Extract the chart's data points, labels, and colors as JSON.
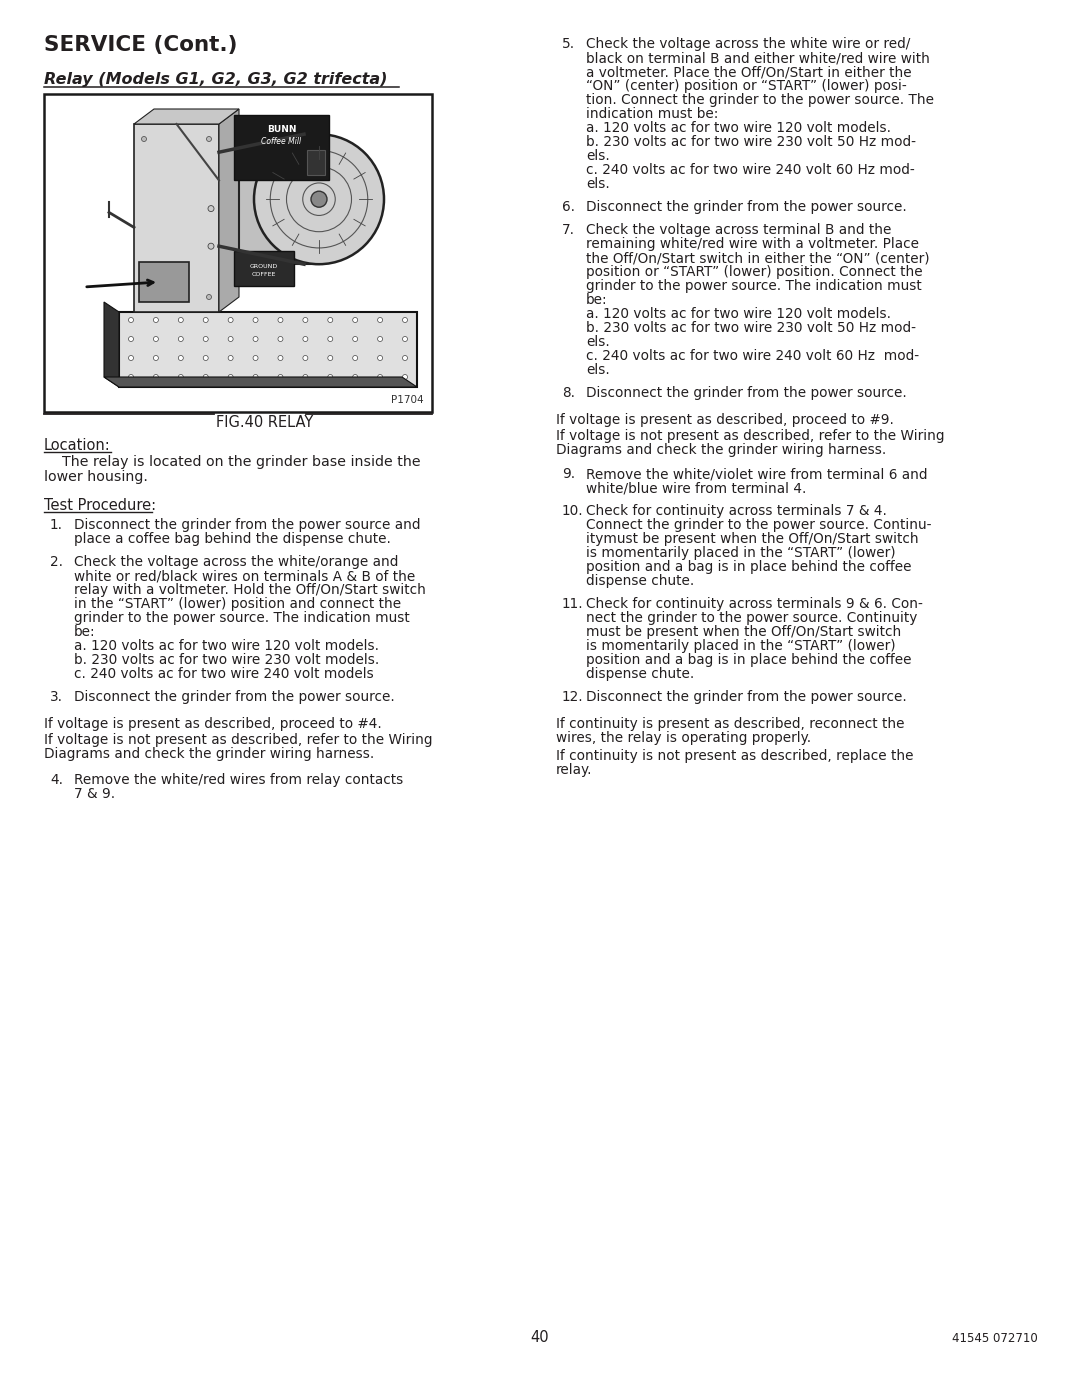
{
  "bg_color": "#ffffff",
  "text_color": "#231f20",
  "header_title": "SERVICE (Cont.)",
  "section_title": "Relay (Models G1, G2, G3, G2 trifecta)",
  "fig_caption": "FIG.40 RELAY",
  "fig_label": "P1704",
  "location_title": "Location:",
  "location_line1": "    The relay is located on the grinder base inside the",
  "location_line2": "lower housing.",
  "test_proc_title": "Test Procedure:",
  "left_col_items": [
    {
      "num": "1.",
      "lines": [
        "Disconnect the grinder from the power source and",
        "place a coffee bag behind the dispense chute."
      ]
    },
    {
      "num": "2.",
      "lines": [
        "Check the voltage across the white/orange and",
        "white or red/black wires on terminals A & B of the",
        "relay with a voltmeter. Hold the Off/On/Start switch",
        "in the “START” (lower) position and connect the",
        "grinder to the power source. The indication must",
        "be:",
        "a. 120 volts ac for two wire 120 volt models.",
        "b. 230 volts ac for two wire 230 volt models.",
        "c. 240 volts ac for two wire 240 volt models"
      ]
    },
    {
      "num": "3.",
      "lines": [
        "Disconnect the grinder from the power source."
      ]
    }
  ],
  "left_if1": "If voltage is present as described, proceed to #4.",
  "left_if2a": "If voltage is not present as described, refer to the Wiring",
  "left_if2b": "Diagrams and check the grinder wiring harness.",
  "left_item4_num": "4.",
  "left_item4_lines": [
    "Remove the white/red wires from relay contacts",
    "7 & 9."
  ],
  "right_col_items": [
    {
      "num": "5.",
      "lines": [
        "Check the voltage across the white wire or red/",
        "black on terminal B and either white/red wire with",
        "a voltmeter. Place the Off/On/Start in either the",
        "“ON” (center) position or “START” (lower) posi-",
        "tion. Connect the grinder to the power source. The",
        "indication must be:",
        "a. 120 volts ac for two wire 120 volt models.",
        "b. 230 volts ac for two wire 230 volt 50 Hz mod-",
        "els.",
        "c. 240 volts ac for two wire 240 volt 60 Hz mod-",
        "els."
      ]
    },
    {
      "num": "6.",
      "lines": [
        "Disconnect the grinder from the power source."
      ]
    },
    {
      "num": "7.",
      "lines": [
        "Check the voltage across terminal B and the",
        "remaining white/red wire with a voltmeter. Place",
        "the Off/On/Start switch in either the “ON” (center)",
        "position or “START” (lower) position. Connect the",
        "grinder to the power source. The indication must",
        "be:",
        "a. 120 volts ac for two wire 120 volt models.",
        "b. 230 volts ac for two wire 230 volt 50 Hz mod-",
        "els.",
        "c. 240 volts ac for two wire 240 volt 60 Hz  mod-",
        "els."
      ]
    },
    {
      "num": "8.",
      "lines": [
        "Disconnect the grinder from the power source."
      ]
    }
  ],
  "right_if1": "If voltage is present as described, proceed to #9.",
  "right_if2a": "If voltage is not present as described, refer to the Wiring",
  "right_if2b": "Diagrams and check the grinder wiring harness.",
  "right_col_items2": [
    {
      "num": "9.",
      "lines": [
        "Remove the white/violet wire from terminal 6 and",
        "white/blue wire from terminal 4."
      ]
    },
    {
      "num": "10.",
      "lines": [
        "Check for continuity across terminals 7 & 4.",
        "Connect the grinder to the power source. Continu-",
        "itymust be present when the Off/On/Start switch",
        "is momentarily placed in the “START” (lower)",
        "position and a bag is in place behind the coffee",
        "dispense chute."
      ]
    },
    {
      "num": "11.",
      "lines": [
        "Check for continuity across terminals 9 & 6. Con-",
        "nect the grinder to the power source. Continuity",
        "must be present when the Off/On/Start switch",
        "is momentarily placed in the “START” (lower)",
        "position and a bag is in place behind the coffee",
        "dispense chute."
      ]
    },
    {
      "num": "12.",
      "lines": [
        "Disconnect the grinder from the power source."
      ]
    }
  ],
  "right_end1a": "If continuity is present as described, reconnect the",
  "right_end1b": "wires, the relay is operating properly.",
  "right_end2a": "If continuity is not present as described, replace the",
  "right_end2b": "relay.",
  "footer_page": "40",
  "footer_doc": "41545 072710"
}
